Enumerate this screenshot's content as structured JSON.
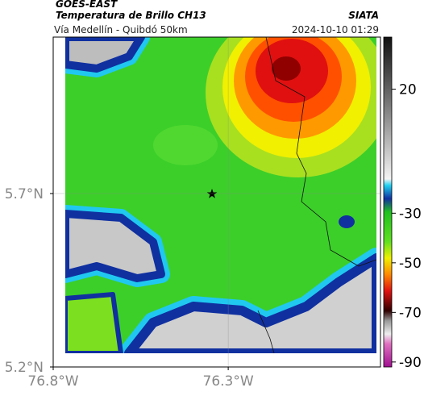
{
  "header": {
    "agency": "GOES-EAST",
    "title": "Temperatura de Brillo CH13",
    "source": "SIATA",
    "subtitle": "Vía Medellín - Quibdó 50km",
    "timestamp": "2024-10-10 01:29"
  },
  "map": {
    "xlim": [
      -76.8,
      -75.865
    ],
    "ylim": [
      5.2,
      6.151
    ],
    "xticks": [
      {
        "value": -76.8,
        "label": "76.8°W"
      },
      {
        "value": -76.3,
        "label": "76.3°W"
      }
    ],
    "yticks": [
      {
        "value": 5.2,
        "label": "5.2°N"
      },
      {
        "value": 5.7,
        "label": "5.7°N"
      }
    ],
    "grid": true
  },
  "colorbar": {
    "lim": [
      -92,
      41
    ],
    "ticks": [
      20,
      -30,
      -50,
      -70,
      -90
    ]
  }
}
